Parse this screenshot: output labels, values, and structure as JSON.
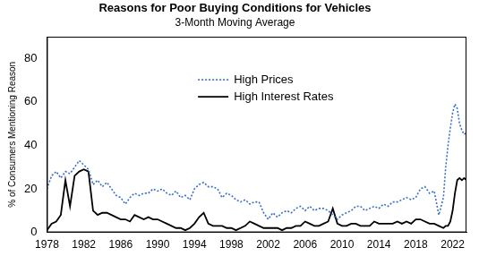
{
  "chart_data": {
    "type": "line",
    "title": "Reasons for Poor Buying Conditions for Vehicles",
    "subtitle": "3-Month Moving Average",
    "y_label": "% of Consumers Mentioning Reason",
    "x": [
      1978,
      1978.5,
      1979,
      1979.5,
      1980,
      1980.5,
      1981,
      1981.5,
      1982,
      1982.5,
      1983,
      1983.5,
      1984,
      1984.5,
      1985,
      1985.5,
      1986,
      1986.5,
      1987,
      1987.5,
      1988,
      1988.5,
      1989,
      1989.5,
      1990,
      1990.5,
      1991,
      1991.5,
      1992,
      1992.5,
      1993,
      1993.5,
      1994,
      1994.5,
      1995,
      1995.5,
      1996,
      1996.5,
      1997,
      1997.5,
      1998,
      1998.5,
      1999,
      1999.5,
      2000,
      2000.5,
      2001,
      2001.5,
      2002,
      2002.5,
      2003,
      2003.5,
      2004,
      2004.5,
      2005,
      2005.5,
      2006,
      2006.5,
      2007,
      2007.5,
      2008,
      2008.5,
      2009,
      2009.5,
      2010,
      2010.5,
      2011,
      2011.5,
      2012,
      2012.5,
      2013,
      2013.5,
      2014,
      2014.5,
      2015,
      2015.5,
      2016,
      2016.5,
      2017,
      2017.5,
      2018,
      2018.5,
      2019,
      2019.5,
      2020,
      2020.5,
      2021,
      2021.25,
      2021.5,
      2021.75,
      2022,
      2022.25,
      2022.5,
      2022.75,
      2023,
      2023.25,
      2023.5
    ],
    "series": [
      {
        "name": "High Prices",
        "color": "#3a6fc4",
        "line_style": "dotted",
        "values": [
          20,
          26,
          28,
          25,
          28,
          27,
          30,
          33,
          31,
          29,
          22,
          24,
          21,
          23,
          20,
          17,
          16,
          13,
          16,
          18,
          17,
          18,
          18,
          20,
          19,
          20,
          18,
          17,
          19,
          16,
          17,
          15,
          20,
          22,
          23,
          21,
          21,
          20,
          16,
          18,
          17,
          15,
          14,
          15,
          13,
          14,
          14,
          9,
          6,
          9,
          7,
          9,
          10,
          9,
          11,
          12,
          10,
          12,
          10,
          11,
          11,
          10,
          8,
          6,
          8,
          9,
          10,
          12,
          12,
          10,
          11,
          12,
          11,
          13,
          12,
          14,
          14,
          15,
          16,
          15,
          16,
          20,
          21,
          18,
          19,
          8,
          16,
          30,
          40,
          48,
          55,
          59,
          57,
          50,
          47,
          45,
          46
        ]
      },
      {
        "name": "High Interest Rates",
        "color": "#000000",
        "line_style": "solid",
        "values": [
          1,
          4,
          5,
          8,
          24,
          12,
          26,
          28,
          29,
          28,
          10,
          8,
          9,
          9,
          8,
          7,
          6,
          6,
          5,
          8,
          7,
          6,
          7,
          6,
          6,
          5,
          4,
          3,
          2,
          2,
          1,
          2,
          4,
          7,
          9,
          4,
          3,
          3,
          3,
          2,
          2,
          1,
          2,
          3,
          5,
          4,
          3,
          2,
          2,
          2,
          2,
          1,
          2,
          2,
          3,
          3,
          5,
          4,
          3,
          3,
          4,
          5,
          11,
          4,
          3,
          3,
          4,
          4,
          3,
          3,
          3,
          5,
          4,
          4,
          4,
          4,
          5,
          4,
          5,
          4,
          6,
          6,
          5,
          4,
          4,
          3,
          2,
          3,
          3,
          5,
          10,
          18,
          24,
          25,
          24,
          25,
          24
        ]
      }
    ],
    "xlim": [
      1978,
      2023.5
    ],
    "xticks": [
      1978,
      1982,
      1986,
      1990,
      1994,
      1998,
      2002,
      2006,
      2010,
      2014,
      2018,
      2022
    ],
    "ylim": [
      0,
      90
    ],
    "yticks": [
      0,
      20,
      40,
      60,
      80
    ],
    "grid": false,
    "legend": "top"
  }
}
